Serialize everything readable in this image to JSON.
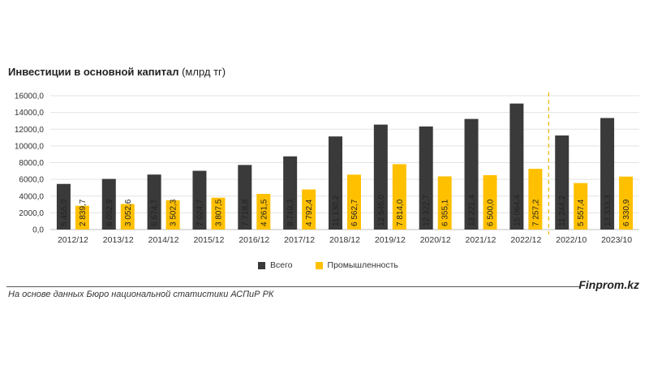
{
  "title": {
    "bold": "Инвестиции в основной капитал",
    "regular": " (млрд тг)"
  },
  "legend": {
    "series1": "Всего",
    "series2": "Промышленность"
  },
  "source": "На основе данных Бюро национальной статистики АСПиР РК",
  "brand": "Finprom.kz",
  "colors": {
    "total": "#3a3a3a",
    "industry": "#ffc000",
    "divider": "#f0b400"
  },
  "chart_data": {
    "type": "bar",
    "title": "Инвестиции в основной капитал (млрд тг)",
    "categories": [
      "2012/12",
      "2013/12",
      "2014/12",
      "2015/12",
      "2016/12",
      "2017/12",
      "2018/12",
      "2019/12",
      "2020/12",
      "2021/12",
      "2022/12",
      "2022/10",
      "2023/10"
    ],
    "series": [
      {
        "name": "Всего",
        "values": [
          5455.0,
          6052.9,
          6574.7,
          7024.7,
          7718.8,
          8749.3,
          11130.2,
          12546.0,
          12322.7,
          13221.4,
          15064.4,
          11244.2,
          13333.3
        ],
        "labels": [
          "5 455,0",
          "6 052,9",
          "6 574,7",
          "7 024,7",
          "7 718,8",
          "8 749,3",
          "11 130,2",
          "12 546,0",
          "12 322,7",
          "13 221,4",
          "15 064,4",
          "11 244,2",
          "13 333,3"
        ]
      },
      {
        "name": "Промышленность",
        "values": [
          2839.7,
          3052.6,
          3502.3,
          3807.5,
          4261.5,
          4792.4,
          6562.7,
          7814.0,
          6355.1,
          6500.0,
          7257.2,
          5557.4,
          6330.9
        ],
        "labels": [
          "2 839,7",
          "3 052,6",
          "3 502,3",
          "3 807,5",
          "4 261,5",
          "4 792,4",
          "6 562,7",
          "7 814,0",
          "6 355,1",
          "6 500,0",
          "7 257,2",
          "5 557,4",
          "6 330,9"
        ]
      }
    ],
    "yticks": [
      "0,0",
      "2000,0",
      "4000,0",
      "6000,0",
      "8000,0",
      "10000,0",
      "12000,0",
      "14000,0",
      "16000,0"
    ],
    "ylim": [
      0,
      16000
    ],
    "grid": true,
    "legend_position": "bottom",
    "divider_after_category": "2022/12"
  }
}
